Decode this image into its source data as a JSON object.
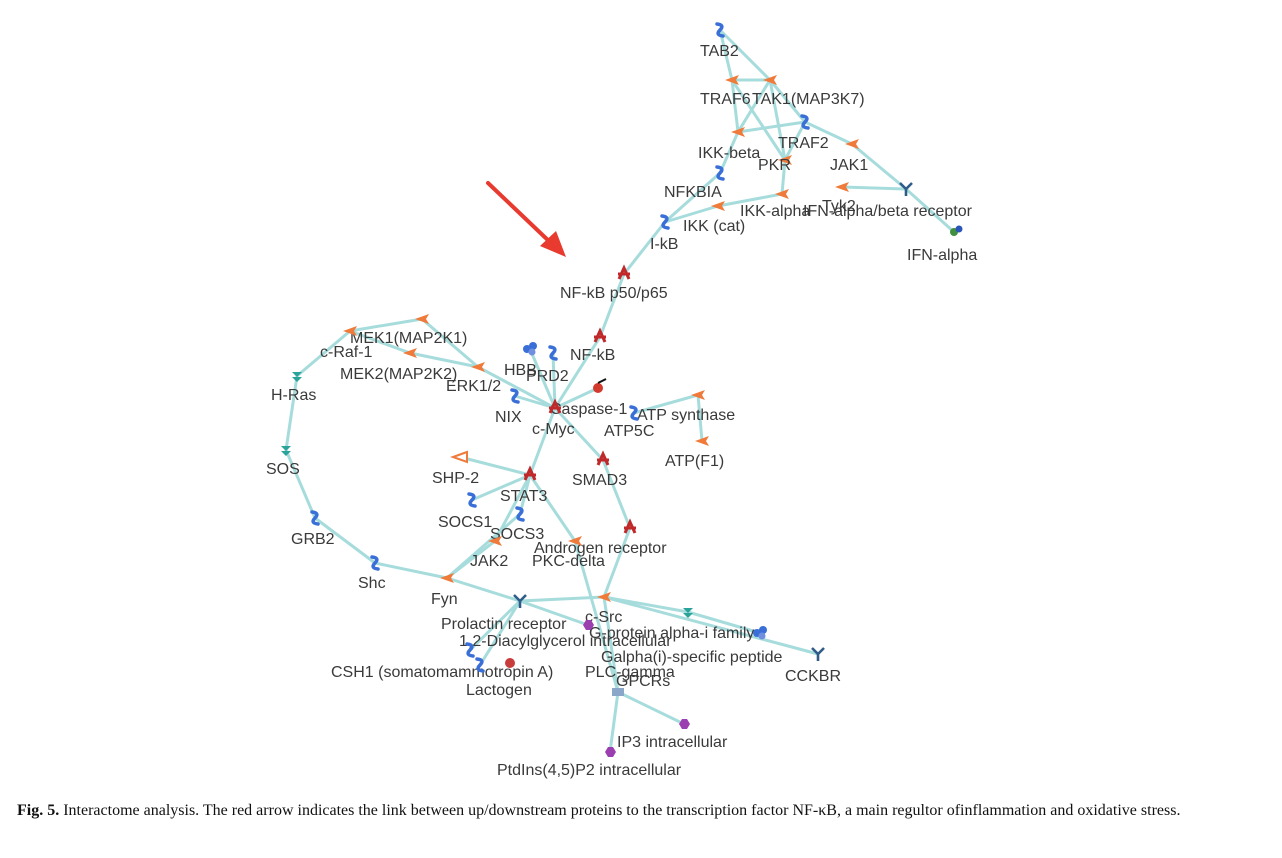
{
  "figure": {
    "caption_label": "Fig. 5.",
    "caption_text": "Interactome analysis. The red arrow indicates the link between up/downstream proteins to the transcription factor NF-κB, a main regultor ofinflammation and oxidative stress."
  },
  "colors": {
    "edge": "#a7dcdc",
    "arrow": "#e83a2e",
    "kinase": "#ef7a3a",
    "kinase_light": "#f3a53a",
    "tf": "#c0282a",
    "binding": "#3a6fd8",
    "receptor": "#2f5d8a",
    "gprotein": "#2aa39a",
    "small_molecule": "#9b3fb0",
    "ligand": "#3f8f3f"
  },
  "nodes": [
    {
      "id": "TAB2",
      "label": "TAB2",
      "icon": "binding-protein-icon"
    },
    {
      "id": "TRAF6",
      "label": "TRAF6",
      "icon": "kinase-icon"
    },
    {
      "id": "TAK1",
      "label": "TAK1(MAP3K7)",
      "icon": "kinase-icon"
    },
    {
      "id": "TRAF2",
      "label": "TRAF2",
      "icon": "binding-protein-icon"
    },
    {
      "id": "IKKbeta",
      "label": "IKK-beta",
      "icon": "kinase-icon"
    },
    {
      "id": "PKR",
      "label": "PKR",
      "icon": "kinase-icon"
    },
    {
      "id": "JAK1",
      "label": "JAK1",
      "icon": "kinase-icon"
    },
    {
      "id": "Tyk2",
      "label": "Tyk2",
      "icon": "kinase-icon"
    },
    {
      "id": "NFKBIA",
      "label": "NFKBIA",
      "icon": "binding-protein-icon"
    },
    {
      "id": "IKKalpha",
      "label": "IKK-alpha",
      "icon": "kinase-icon"
    },
    {
      "id": "IFNR",
      "label": "IFN-alpha/beta receptor",
      "icon": "receptor-icon"
    },
    {
      "id": "IKKcat",
      "label": "IKK (cat)",
      "icon": "kinase-icon"
    },
    {
      "id": "IkB",
      "label": "I-kB",
      "icon": "binding-protein-icon"
    },
    {
      "id": "IFNa",
      "label": "IFN-alpha",
      "icon": "ligand-icon"
    },
    {
      "id": "NFkBp",
      "label": "NF-kB p50/p65",
      "icon": "transcription-factor-icon"
    },
    {
      "id": "NFkB",
      "label": "NF-kB",
      "icon": "transcription-factor-icon"
    },
    {
      "id": "MEK1",
      "label": "MEK1(MAP2K1)",
      "icon": "kinase-icon"
    },
    {
      "id": "cRaf",
      "label": "c-Raf-1",
      "icon": "kinase-icon"
    },
    {
      "id": "MEK2",
      "label": "MEK2(MAP2K2)",
      "icon": "kinase-icon"
    },
    {
      "id": "HRas",
      "label": "H-Ras",
      "icon": "g-protein-icon"
    },
    {
      "id": "ERK",
      "label": "ERK1/2",
      "icon": "kinase-icon"
    },
    {
      "id": "HBB",
      "label": "HBB",
      "icon": "complex-icon"
    },
    {
      "id": "PRD2",
      "label": "PRD2",
      "icon": "binding-protein-icon"
    },
    {
      "id": "NIX",
      "label": "NIX",
      "icon": "binding-protein-icon"
    },
    {
      "id": "Caspase",
      "label": "Caspase-1",
      "icon": "protease-icon"
    },
    {
      "id": "cMyc",
      "label": "c-Myc",
      "icon": "transcription-factor-icon"
    },
    {
      "id": "ATPsyn",
      "label": "ATP synthase",
      "icon": "kinase-icon"
    },
    {
      "id": "ATP5C",
      "label": "ATP5C",
      "icon": "binding-protein-icon"
    },
    {
      "id": "ATPF1",
      "label": "ATP(F1)",
      "icon": "kinase-icon"
    },
    {
      "id": "SOS",
      "label": "SOS",
      "icon": "g-protein-icon"
    },
    {
      "id": "SHP2",
      "label": "SHP-2",
      "icon": "phosphatase-icon"
    },
    {
      "id": "SMAD3",
      "label": "SMAD3",
      "icon": "transcription-factor-icon"
    },
    {
      "id": "STAT3",
      "label": "STAT3",
      "icon": "transcription-factor-icon"
    },
    {
      "id": "SOCS1",
      "label": "SOCS1",
      "icon": "binding-protein-icon"
    },
    {
      "id": "SOCS3",
      "label": "SOCS3",
      "icon": "binding-protein-icon"
    },
    {
      "id": "GRB2",
      "label": "GRB2",
      "icon": "binding-protein-icon"
    },
    {
      "id": "AR",
      "label": "Androgen receptor",
      "icon": "transcription-factor-icon"
    },
    {
      "id": "JAK2",
      "label": "JAK2",
      "icon": "kinase-icon"
    },
    {
      "id": "PKCd",
      "label": "PKC-delta",
      "icon": "kinase-icon"
    },
    {
      "id": "Shc",
      "label": "Shc",
      "icon": "binding-protein-icon"
    },
    {
      "id": "Fyn",
      "label": "Fyn",
      "icon": "kinase-icon"
    },
    {
      "id": "PRLR",
      "label": "Prolactin receptor",
      "icon": "receptor-icon"
    },
    {
      "id": "cSrc",
      "label": "c-Src",
      "icon": "kinase-icon"
    },
    {
      "id": "Gai",
      "label": "G-protein alpha-i family",
      "icon": "g-protein-icon"
    },
    {
      "id": "DAG",
      "label": "1,2-Diacylglycerol intracellular",
      "icon": "small-molecule-icon"
    },
    {
      "id": "GaiPep",
      "label": "Galpha(i)-specific peptide",
      "icon": "complex-icon"
    },
    {
      "id": "CSH1",
      "label": "CSH1 (somatomammotropin A)",
      "icon": "binding-protein-icon"
    },
    {
      "id": "PLCg",
      "label": "PLC-gamma",
      "icon": "enzyme-icon"
    },
    {
      "id": "GPCRs",
      "label": "GPCRs",
      "icon": "receptor-group-icon"
    },
    {
      "id": "CCKBR",
      "label": "CCKBR",
      "icon": "receptor-icon"
    },
    {
      "id": "Lactogen",
      "label": "Lactogen",
      "icon": "binding-protein-icon"
    },
    {
      "id": "IP3",
      "label": "IP3 intracellular",
      "icon": "small-molecule-icon"
    },
    {
      "id": "PIP2",
      "label": "PtdIns(4,5)P2 intracellular",
      "icon": "small-molecule-icon"
    }
  ],
  "edges": [
    [
      "TAB2",
      "TRAF6"
    ],
    [
      "TAB2",
      "TAK1"
    ],
    [
      "TRAF6",
      "TAK1"
    ],
    [
      "TRAF6",
      "IKKbeta"
    ],
    [
      "TAK1",
      "IKKbeta"
    ],
    [
      "TAK1",
      "TRAF2"
    ],
    [
      "TAK1",
      "PKR"
    ],
    [
      "TRAF6",
      "PKR"
    ],
    [
      "TRAF2",
      "IKKbeta"
    ],
    [
      "TRAF2",
      "JAK1"
    ],
    [
      "TRAF2",
      "PKR"
    ],
    [
      "PKR",
      "IKKalpha"
    ],
    [
      "JAK1",
      "IFNR"
    ],
    [
      "Tyk2",
      "IFNR"
    ],
    [
      "IFNR",
      "IFNa"
    ],
    [
      "IKKbeta",
      "NFKBIA"
    ],
    [
      "IKKalpha",
      "IKKcat"
    ],
    [
      "IKKcat",
      "IkB"
    ],
    [
      "NFKBIA",
      "IkB"
    ],
    [
      "IkB",
      "NFkBp"
    ],
    [
      "NFkBp",
      "NFkB"
    ],
    [
      "NFkB",
      "cMyc"
    ],
    [
      "MEK1",
      "cRaf"
    ],
    [
      "MEK1",
      "ERK"
    ],
    [
      "cRaf",
      "MEK2"
    ],
    [
      "MEK2",
      "ERK"
    ],
    [
      "cRaf",
      "HRas"
    ],
    [
      "HRas",
      "SOS"
    ],
    [
      "SOS",
      "GRB2"
    ],
    [
      "GRB2",
      "Shc"
    ],
    [
      "Shc",
      "Fyn"
    ],
    [
      "ERK",
      "cMyc"
    ],
    [
      "HBB",
      "cMyc"
    ],
    [
      "PRD2",
      "cMyc"
    ],
    [
      "NIX",
      "cMyc"
    ],
    [
      "Caspase",
      "cMyc"
    ],
    [
      "ATPsyn",
      "ATP5C"
    ],
    [
      "ATPsyn",
      "ATPF1"
    ],
    [
      "cMyc",
      "STAT3"
    ],
    [
      "cMyc",
      "SMAD3"
    ],
    [
      "SHP2",
      "STAT3"
    ],
    [
      "STAT3",
      "SOCS1"
    ],
    [
      "STAT3",
      "SOCS3"
    ],
    [
      "STAT3",
      "JAK2"
    ],
    [
      "STAT3",
      "PKCd"
    ],
    [
      "SMAD3",
      "AR"
    ],
    [
      "AR",
      "cSrc"
    ],
    [
      "JAK2",
      "Fyn"
    ],
    [
      "SOCS3",
      "Fyn"
    ],
    [
      "Fyn",
      "PRLR"
    ],
    [
      "PRLR",
      "cSrc"
    ],
    [
      "PRLR",
      "CSH1"
    ],
    [
      "PRLR",
      "Lactogen"
    ],
    [
      "PRLR",
      "DAG"
    ],
    [
      "cSrc",
      "Gai"
    ],
    [
      "cSrc",
      "GPCRs"
    ],
    [
      "cSrc",
      "CCKBR"
    ],
    [
      "Gai",
      "GaiPep"
    ],
    [
      "PKCd",
      "GPCRs"
    ],
    [
      "GPCRs",
      "IP3"
    ],
    [
      "GPCRs",
      "PIP2"
    ]
  ]
}
